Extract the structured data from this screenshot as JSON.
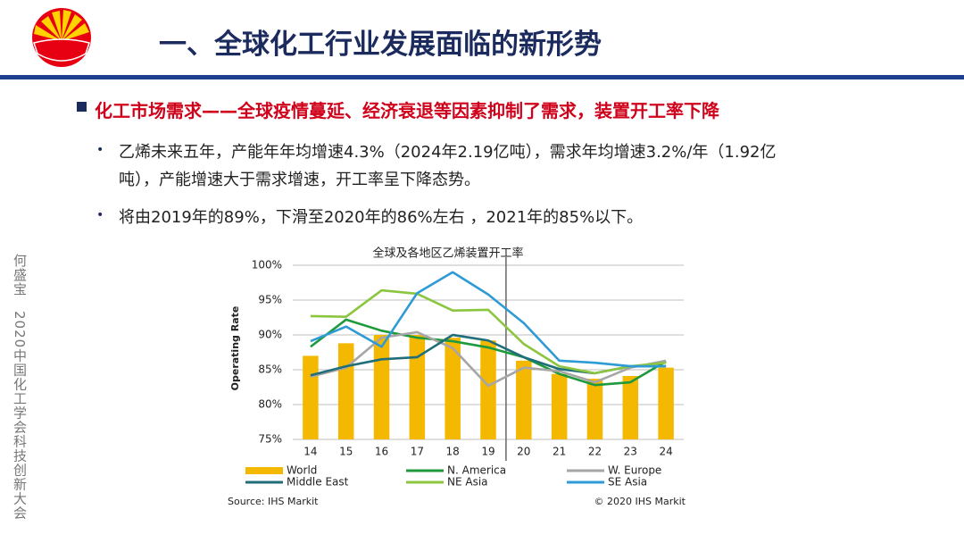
{
  "header": {
    "title": "一、全球化工行业发展面临的新形势"
  },
  "section": {
    "heading": "化工市场需求——全球疫情蔓延、经济衰退等因素抑制了需求，装置开工率下降"
  },
  "bullets": [
    "乙烯未来五年，产能年年均增速4.3%（2024年2.19亿吨），需求年均增速3.2%/年（1.92亿吨），产能增速大于需求增速，开工率呈下降态势。",
    "将由2019年的89%，下滑至2020年的86%左右 ，2021年的85%以下。"
  ],
  "sidebar": "何盛宝　2020中国化工学会科技创新大会",
  "chart_data": {
    "type": "combo",
    "title": "全球及各地区乙烯装置开工率",
    "ylabel": "Operating Rate",
    "source": "Source: IHS Markit",
    "copyright": "© 2020 IHS Markit",
    "categories": [
      "14",
      "15",
      "16",
      "17",
      "18",
      "19",
      "20",
      "21",
      "22",
      "23",
      "24"
    ],
    "ylim": [
      75,
      100
    ],
    "yticks": [
      {
        "value": 75,
        "label": "75%"
      },
      {
        "value": 80,
        "label": "80%"
      },
      {
        "value": 85,
        "label": "85%"
      },
      {
        "value": 90,
        "label": "90%"
      },
      {
        "value": 95,
        "label": "95%"
      },
      {
        "value": 100,
        "label": "100%"
      }
    ],
    "grid": true,
    "series": [
      {
        "name": "World",
        "type": "bar",
        "color": "#f5b800",
        "values": [
          87.0,
          88.8,
          90.0,
          90.0,
          89.6,
          89.2,
          86.3,
          84.4,
          83.7,
          84.1,
          85.3
        ]
      },
      {
        "name": "N. America",
        "type": "line",
        "color": "#1e9a3c",
        "values": [
          88.3,
          92.2,
          90.6,
          89.6,
          89.1,
          88.2,
          86.8,
          84.4,
          82.8,
          83.2,
          86.2
        ]
      },
      {
        "name": "W. Europe",
        "type": "line",
        "color": "#a6a6a6",
        "values": [
          84.0,
          85.3,
          89.6,
          90.4,
          88.1,
          82.7,
          85.3,
          84.8,
          83.2,
          85.3,
          86.3
        ]
      },
      {
        "name": "Middle East",
        "type": "line",
        "color": "#1f6e7a",
        "values": [
          84.2,
          85.5,
          86.5,
          86.8,
          90.0,
          89.2,
          86.8,
          85.1,
          84.5,
          85.5,
          85.5
        ]
      },
      {
        "name": "NE Asia",
        "type": "line",
        "color": "#8cc63f",
        "values": [
          92.7,
          92.6,
          96.4,
          95.9,
          93.5,
          93.6,
          88.7,
          85.5,
          84.5,
          85.5,
          86.0
        ]
      },
      {
        "name": "SE Asia",
        "type": "line",
        "color": "#2e9bd6",
        "values": [
          89.1,
          91.2,
          88.3,
          96.0,
          99.0,
          95.8,
          91.7,
          86.3,
          86.0,
          85.5,
          85.5
        ]
      }
    ]
  }
}
